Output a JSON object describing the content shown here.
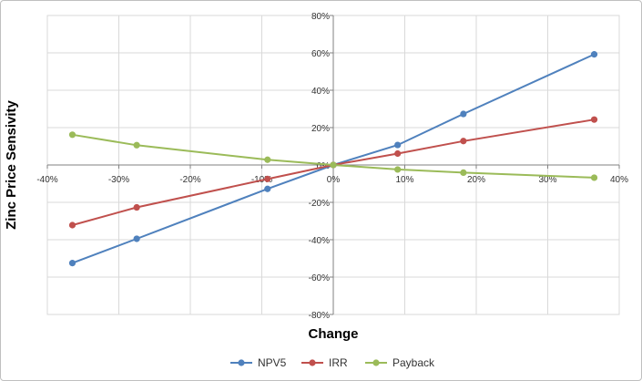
{
  "chart_data": {
    "type": "line",
    "xlabel": "Change",
    "ylabel": "Zinc Price Sensivity",
    "xlim": [
      -40,
      40
    ],
    "ylim": [
      -80,
      80
    ],
    "x_ticks": [
      "-40%",
      "-30%",
      "-20%",
      "-10%",
      "0%",
      "10%",
      "20%",
      "30%",
      "40%"
    ],
    "y_ticks": [
      "80%",
      "60%",
      "40%",
      "20%",
      "0%",
      "-20%",
      "-40%",
      "-60%",
      "-80%"
    ],
    "grid": true,
    "legend_position": "bottom",
    "series": [
      {
        "name": "NPV5",
        "color": "#4f81bd",
        "x": [
          -36.5,
          -27.5,
          -9.2,
          0,
          9,
          18.2,
          36.5
        ],
        "y": [
          -52.5,
          -39.5,
          -12.8,
          0,
          10.7,
          27.3,
          59.2
        ]
      },
      {
        "name": "IRR",
        "color": "#c0504d",
        "x": [
          -36.5,
          -27.5,
          -9.2,
          0,
          9,
          18.2,
          36.5
        ],
        "y": [
          -32.2,
          -22.7,
          -7.5,
          0,
          6.1,
          12.8,
          24.3
        ]
      },
      {
        "name": "Payback",
        "color": "#9bbb59",
        "x": [
          -36.5,
          -27.5,
          -9.2,
          0,
          9,
          18.2,
          36.5
        ],
        "y": [
          16.2,
          10.6,
          2.8,
          0,
          -2.4,
          -4.1,
          -6.8
        ]
      }
    ]
  }
}
